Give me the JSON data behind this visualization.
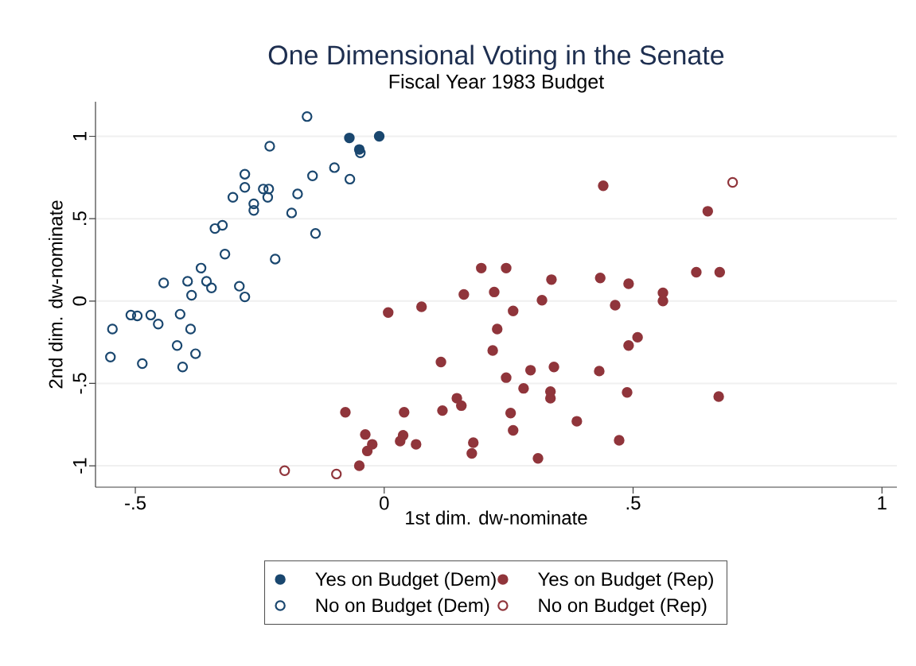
{
  "chart_data": {
    "type": "scatter",
    "title": "One Dimensional Voting in the Senate",
    "subtitle": "Fiscal Year 1983 Budget",
    "xlabel": "1st dim. dw-nominate",
    "ylabel": "2nd dim. dw-nominate",
    "xlim": [
      -0.58,
      1.03
    ],
    "ylim": [
      -1.13,
      1.21
    ],
    "xticks": [
      {
        "value": -0.5,
        "label": "-.5"
      },
      0,
      {
        "value": 0.5,
        "label": ".5"
      },
      1
    ],
    "yticks": [
      -1,
      {
        "value": -0.5,
        "label": "-.5"
      },
      0,
      {
        "value": 0.5,
        "label": ".5"
      },
      1
    ],
    "grid": "y",
    "legend": "bottom",
    "series": [
      {
        "name": "Yes on Budget (Dem)",
        "color": "#1a476f",
        "marker": "circle",
        "x": [
          -0.07,
          -0.05,
          -0.01
        ],
        "values": [
          0.99,
          0.92,
          1.0
        ]
      },
      {
        "name": "No on Budget (Dem)",
        "color": "#1a476f",
        "marker": "open circle",
        "x": [
          -0.155,
          -0.048,
          -0.23,
          -0.1,
          -0.144,
          -0.069,
          -0.28,
          -0.28,
          -0.243,
          -0.232,
          -0.234,
          -0.304,
          -0.174,
          -0.262,
          -0.262,
          -0.186,
          -0.325,
          -0.34,
          -0.138,
          -0.32,
          -0.219,
          -0.368,
          -0.443,
          -0.395,
          -0.357,
          -0.347,
          -0.291,
          -0.28,
          -0.387,
          -0.509,
          -0.496,
          -0.469,
          -0.454,
          -0.41,
          -0.389,
          -0.546,
          -0.55,
          -0.486,
          -0.416,
          -0.379,
          -0.405
        ],
        "values": [
          1.12,
          0.9,
          0.94,
          0.81,
          0.76,
          0.74,
          0.77,
          0.69,
          0.68,
          0.68,
          0.63,
          0.63,
          0.65,
          0.59,
          0.55,
          0.535,
          0.46,
          0.44,
          0.41,
          0.285,
          0.255,
          0.2,
          0.11,
          0.12,
          0.12,
          0.08,
          0.09,
          0.025,
          0.035,
          -0.085,
          -0.09,
          -0.085,
          -0.14,
          -0.08,
          -0.17,
          -0.17,
          -0.34,
          -0.38,
          -0.27,
          -0.32,
          -0.4
        ]
      },
      {
        "name": "Yes on Budget (Rep)",
        "color": "#90353b",
        "marker": "circle",
        "x": [
          0.195,
          0.245,
          0.336,
          0.434,
          0.16,
          0.221,
          0.317,
          0.075,
          0.008,
          0.259,
          0.227,
          0.218,
          0.114,
          0.294,
          0.341,
          0.432,
          0.245,
          0.28,
          0.334,
          0.334,
          0.146,
          0.155,
          -0.078,
          0.04,
          0.117,
          0.254,
          0.387,
          0.259,
          -0.038,
          0.038,
          -0.024,
          0.032,
          0.064,
          0.179,
          -0.034,
          0.176,
          0.309,
          -0.05,
          0.44,
          0.65,
          0.627,
          0.674,
          0.491,
          0.56,
          0.56,
          0.464,
          0.509,
          0.491,
          0.488,
          0.672,
          0.472
        ],
        "values": [
          0.2,
          0.2,
          0.13,
          0.14,
          0.04,
          0.055,
          0.005,
          -0.035,
          -0.07,
          -0.06,
          -0.17,
          -0.3,
          -0.37,
          -0.42,
          -0.4,
          -0.425,
          -0.465,
          -0.53,
          -0.55,
          -0.59,
          -0.59,
          -0.635,
          -0.675,
          -0.675,
          -0.665,
          -0.68,
          -0.73,
          -0.785,
          -0.81,
          -0.815,
          -0.87,
          -0.85,
          -0.87,
          -0.86,
          -0.91,
          -0.925,
          -0.955,
          -1.0,
          0.7,
          0.545,
          0.175,
          0.175,
          0.105,
          0.05,
          0.0,
          -0.025,
          -0.22,
          -0.27,
          -0.555,
          -0.58,
          -0.845
        ]
      },
      {
        "name": "No on Budget (Rep)",
        "color": "#90353b",
        "marker": "open circle",
        "x": [
          -0.2,
          -0.096,
          0.7
        ],
        "values": [
          -1.03,
          -1.05,
          0.72
        ]
      }
    ]
  }
}
